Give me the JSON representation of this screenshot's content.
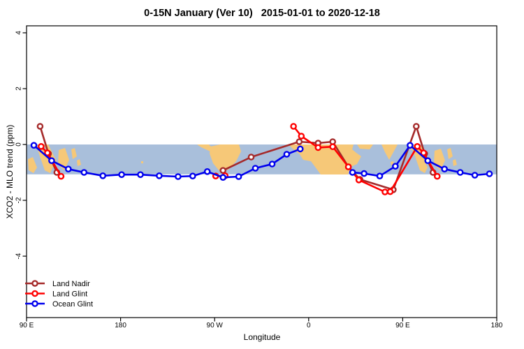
{
  "chart_data": {
    "type": "line",
    "title": "0-15N January (Ver 10)   2015-01-01 to 2020-12-18",
    "x_axis": {
      "label": "Longitude",
      "range": [
        90,
        540
      ],
      "ticks": [
        {
          "pos": 90,
          "label": "90 E"
        },
        {
          "pos": 180,
          "label": "180"
        },
        {
          "pos": 270,
          "label": "90 W"
        },
        {
          "pos": 360,
          "label": "0"
        },
        {
          "pos": 450,
          "label": "90 E"
        },
        {
          "pos": 540,
          "label": "180"
        }
      ]
    },
    "y_axis": {
      "label": "XCO2 - MLO trend (ppm)",
      "range": [
        -6.2,
        4.25
      ],
      "ticks": [
        {
          "pos": 4,
          "label": "4"
        },
        {
          "pos": 2,
          "label": "2"
        },
        {
          "pos": 0,
          "label": "0"
        },
        {
          "pos": -2,
          "label": "-2"
        },
        {
          "pos": -4,
          "label": "-4"
        }
      ]
    },
    "map_band": {
      "y_top": 0.0,
      "y_bottom": -1.07,
      "ocean_color": "#A9BFDB",
      "land_color": "#F6C878",
      "land_paths": [
        "M40 228 L47 225 L53 240 L48 248 L41 244 Z",
        "M52 209 L59 207 L76 238 L72 248 L64 244 Z",
        "M63 207 L69 207 L81 231 L76 240 Z",
        "M84 215 L93 212 L99 229 L92 244 L83 235 Z",
        "M102 214 L107 212 L110 224 L104 228 Z",
        "M110 230 L114 228 L116 236 L111 238 Z",
        "M202 231 L205 231 L205 234 L202 234 Z",
        "M282 207 L299 207 L306 214 L301 217 L288 211 Z",
        "M301 210 L315 207 L342 207 L345 217 L338 231 L327 243 L314 245 L305 234 L300 220 Z",
        "M413 207 L506 207 L504 214 L510 219 L517 224 L511 235 L502 239 L498 250 L459 250 L451 239 L445 231 L434 229 L429 221 L419 213 Z",
        "M511 207 L534 207 L529 214 L515 213 Z",
        "M546 207 L569 207 L562 220 L557 229 L551 218 Z",
        "M559 232 L563 231 L564 236 L560 237 Z",
        "M584 207 L601 207 L608 216 L612 227 L606 231 L596 220 L587 213 Z",
        "M590 212 L597 210 L612 240 L608 248 L601 244 Z",
        "M622 216 L631 213 L637 230 L630 244 L621 235 Z",
        "M640 214 L645 212 L648 224 L642 228 Z",
        "M648 230 L652 228 L654 236 L649 238 Z"
      ]
    },
    "legend": {
      "position": "inside bottom-left"
    },
    "series": [
      {
        "name": "Land Nadir",
        "color": "#A52A2A",
        "segments": [
          [
            [
              103,
              0.65
            ],
            [
              111,
              -0.33
            ],
            [
              119,
              -1.0
            ]
          ],
          [
            [
              278,
              -0.93
            ],
            [
              305,
              -0.45
            ],
            [
              351,
              0.1
            ],
            [
              369,
              0.05
            ],
            [
              383,
              0.1
            ],
            [
              398,
              -0.8
            ],
            [
              409,
              -1.25
            ],
            [
              441,
              -1.62
            ],
            [
              463,
              0.65
            ],
            [
              471,
              -0.33
            ],
            [
              479,
              -1.0
            ]
          ]
        ]
      },
      {
        "name": "Land Glint",
        "color": "#FF0000",
        "segments": [
          [
            [
              104,
              -0.07
            ],
            [
              110,
              -0.3
            ],
            [
              123,
              -1.14
            ]
          ],
          [
            [
              271,
              -1.13
            ],
            [
              280,
              -1.12
            ]
          ],
          [
            [
              345.5,
              0.65
            ],
            [
              353,
              0.3
            ],
            [
              369,
              -0.11
            ],
            [
              383,
              -0.08
            ],
            [
              398,
              -0.8
            ],
            [
              408,
              -1.27
            ],
            [
              433,
              -1.7
            ],
            [
              438,
              -1.69
            ],
            [
              464,
              -0.07
            ],
            [
              470,
              -0.3
            ],
            [
              483,
              -1.14
            ]
          ]
        ]
      },
      {
        "name": "Ocean Glint",
        "color": "#0000EE",
        "segments": [
          [
            [
              97,
              -0.03
            ],
            [
              114,
              -0.58
            ],
            [
              130,
              -0.88
            ],
            [
              145,
              -1.0
            ],
            [
              163,
              -1.12
            ],
            [
              181,
              -1.08
            ],
            [
              199,
              -1.08
            ],
            [
              217,
              -1.12
            ],
            [
              235,
              -1.15
            ],
            [
              249,
              -1.13
            ],
            [
              263,
              -0.97
            ],
            [
              278,
              -1.18
            ],
            [
              293,
              -1.15
            ],
            [
              309,
              -0.85
            ],
            [
              325,
              -0.7
            ],
            [
              339,
              -0.35
            ],
            [
              352,
              -0.16
            ]
          ],
          [
            [
              402,
              -1.0
            ],
            [
              413,
              -1.04
            ],
            [
              428,
              -1.13
            ],
            [
              443,
              -0.78
            ],
            [
              457,
              -0.03
            ],
            [
              474,
              -0.58
            ],
            [
              490,
              -0.88
            ],
            [
              505,
              -1.0
            ],
            [
              519,
              -1.1
            ],
            [
              533,
              -1.05
            ]
          ]
        ]
      }
    ]
  }
}
